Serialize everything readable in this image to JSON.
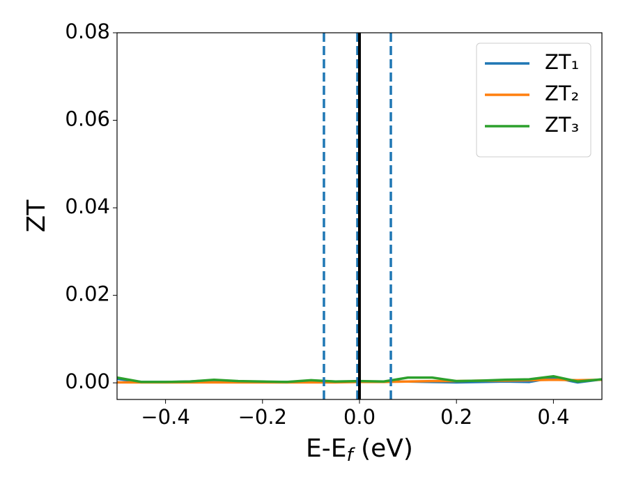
{
  "chart_data": {
    "type": "line",
    "x_label": [
      "E-E",
      "f",
      " (eV)"
    ],
    "y_label": "ZT",
    "x": [
      -0.5,
      -0.45,
      -0.4,
      -0.35,
      -0.3,
      -0.25,
      -0.2,
      -0.15,
      -0.1,
      -0.05,
      0,
      0.05,
      0.1,
      0.15,
      0.2,
      0.25,
      0.3,
      0.35,
      0.4,
      0.45,
      0.5
    ],
    "series": [
      {
        "name": "ZT₁",
        "color": "#1f77b4",
        "values": [
          0.0009,
          0.0002,
          0.0002,
          0.0003,
          0.0006,
          0.0003,
          0.0002,
          0.0002,
          0.0004,
          0.0003,
          0.0003,
          0.0003,
          0.0003,
          0.0002,
          0.0001,
          0.0002,
          0.0003,
          0.0002,
          0.0012,
          0.0001,
          0.0008
        ]
      },
      {
        "name": "ZT₂",
        "color": "#ff7f0e",
        "values": [
          0.0001,
          0.0001,
          0.0001,
          0.0001,
          0.0001,
          0.0001,
          0.0001,
          0.0001,
          0.0001,
          0.0001,
          0.0002,
          0.0002,
          0.0003,
          0.0004,
          0.0004,
          0.0005,
          0.0005,
          0.0006,
          0.0007,
          0.0006,
          0.0007
        ]
      },
      {
        "name": "ZT₃",
        "color": "#2ca02c",
        "values": [
          0.0012,
          0.0002,
          0.0002,
          0.0003,
          0.0007,
          0.0004,
          0.0003,
          0.0002,
          0.0006,
          0.0003,
          0.0004,
          0.0003,
          0.0012,
          0.0012,
          0.0004,
          0.0005,
          0.0007,
          0.0008,
          0.0015,
          0.0003,
          0.0008
        ]
      }
    ],
    "vlines": [
      {
        "x": -0.0733,
        "color": "#1f77b4",
        "style": "dashed"
      },
      {
        "x": -0.0043,
        "color": "#1f77b4",
        "style": "dashed"
      },
      {
        "x": 0.0647,
        "color": "#1f77b4",
        "style": "dashed"
      },
      {
        "x": 0.0,
        "color": "#000000",
        "style": "solid"
      }
    ],
    "xlim": [
      -0.5,
      0.5
    ],
    "ylim": [
      -0.0038,
      0.08
    ],
    "xticks": [
      {
        "value": -0.4,
        "label": "−0.4"
      },
      {
        "value": -0.2,
        "label": "−0.2"
      },
      {
        "value": 0,
        "label": "0.0"
      },
      0.2,
      0.4
    ],
    "yticks": [
      {
        "value": 0,
        "label": "0.00"
      },
      0.02,
      0.04,
      0.06,
      0.08
    ],
    "legend": "upper right",
    "grid": false
  }
}
